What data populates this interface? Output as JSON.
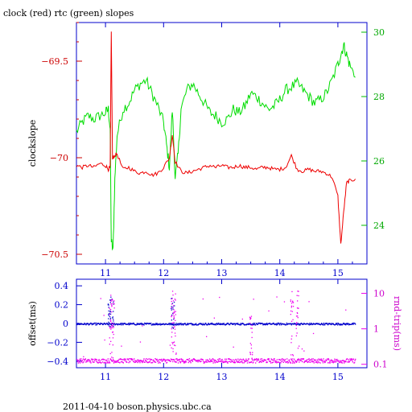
{
  "title": "clock (red) rtc (green) slopes",
  "footer": "2011-04-10 boson.physics.ubc.ca",
  "colors": {
    "clock": "#ee0000",
    "rtc": "#00dd00",
    "offset": "#0000cc",
    "rndtrip": "#ee00ee",
    "frame": "#0000cc",
    "xtick": "#0000cc",
    "left_axis": "#cc0000",
    "right_axis": "#00bb00"
  },
  "chart_data": [
    {
      "type": "line",
      "ylabel": "clockslope",
      "y2label": "",
      "xlim": [
        10.5,
        15.5
      ],
      "ylim": [
        -70.55,
        -69.3
      ],
      "y2lim": [
        22.8,
        30.3
      ],
      "xticks": [
        "11",
        "12",
        "13",
        "14",
        "15"
      ],
      "yticks": [
        "-69.5",
        "-70",
        "-70.5"
      ],
      "y2ticks": [
        "30",
        "28",
        "26",
        "24"
      ],
      "series": [
        {
          "name": "clock",
          "axis": "left",
          "x": [
            10.5,
            10.6,
            10.7,
            10.8,
            10.9,
            11.0,
            11.05,
            11.08,
            11.1,
            11.12,
            11.15,
            11.2,
            11.3,
            11.4,
            11.5,
            11.6,
            11.7,
            11.8,
            11.9,
            12.0,
            12.1,
            12.15,
            12.2,
            12.3,
            12.4,
            12.5,
            12.6,
            12.7,
            12.8,
            12.9,
            13.0,
            13.1,
            13.2,
            13.3,
            13.4,
            13.5,
            13.6,
            13.7,
            13.8,
            13.9,
            14.0,
            14.1,
            14.2,
            14.3,
            14.4,
            14.5,
            14.6,
            14.7,
            14.8,
            14.9,
            15.0,
            15.05,
            15.1,
            15.15,
            15.2,
            15.3
          ],
          "values": [
            -70.04,
            -70.05,
            -70.04,
            -70.05,
            -70.03,
            -70.04,
            -70.06,
            -70.05,
            -69.35,
            -70.01,
            -69.99,
            -69.98,
            -70.06,
            -70.05,
            -70.07,
            -70.08,
            -70.07,
            -70.09,
            -70.08,
            -70.05,
            -70.0,
            -69.88,
            -70.02,
            -70.07,
            -70.08,
            -70.07,
            -70.06,
            -70.05,
            -70.04,
            -70.05,
            -70.04,
            -70.05,
            -70.05,
            -70.04,
            -70.05,
            -70.05,
            -70.06,
            -70.05,
            -70.05,
            -70.06,
            -70.06,
            -70.05,
            -69.99,
            -70.06,
            -70.07,
            -70.06,
            -70.07,
            -70.07,
            -70.08,
            -70.1,
            -70.2,
            -70.45,
            -70.28,
            -70.13,
            -70.12,
            -70.11
          ]
        },
        {
          "name": "rtc",
          "axis": "right",
          "x": [
            10.5,
            10.6,
            10.7,
            10.8,
            10.9,
            11.0,
            11.05,
            11.08,
            11.1,
            11.13,
            11.16,
            11.2,
            11.3,
            11.4,
            11.5,
            11.6,
            11.7,
            11.8,
            11.9,
            12.0,
            12.05,
            12.1,
            12.15,
            12.2,
            12.25,
            12.3,
            12.4,
            12.5,
            12.6,
            12.7,
            12.8,
            12.9,
            13.0,
            13.1,
            13.2,
            13.3,
            13.4,
            13.5,
            13.6,
            13.7,
            13.8,
            13.9,
            14.0,
            14.1,
            14.2,
            14.3,
            14.4,
            14.5,
            14.6,
            14.7,
            14.8,
            14.9,
            15.0,
            15.05,
            15.1,
            15.15,
            15.2,
            15.3
          ],
          "values": [
            26.9,
            27.2,
            27.4,
            27.3,
            27.4,
            27.5,
            27.6,
            27.0,
            23.5,
            23.2,
            25.4,
            26.8,
            27.6,
            27.8,
            28.2,
            28.4,
            28.5,
            28.1,
            27.7,
            27.2,
            26.5,
            25.8,
            27.6,
            25.5,
            26.2,
            27.6,
            28.2,
            28.4,
            28.1,
            27.8,
            27.5,
            27.4,
            27.2,
            27.3,
            27.6,
            27.5,
            27.7,
            28.1,
            28.0,
            27.8,
            27.6,
            27.7,
            27.9,
            28.2,
            28.3,
            28.4,
            28.2,
            28.0,
            27.8,
            27.9,
            28.1,
            28.5,
            29.0,
            29.3,
            29.6,
            29.3,
            29.0,
            28.6
          ]
        }
      ]
    },
    {
      "type": "scatter",
      "ylabel": "offset(ms)",
      "y2label": "rnd-trip(ms)",
      "xlim": [
        10.5,
        15.5
      ],
      "ylim": [
        -0.47,
        0.47
      ],
      "y2scale": "log",
      "y2lim": [
        0.08,
        25
      ],
      "xticks": [
        "11",
        "12",
        "13",
        "14",
        "15"
      ],
      "yticks": [
        "0.4",
        "0.2",
        "0",
        "-0.2",
        "-0.4"
      ],
      "y2ticks": [
        "10",
        "1",
        "0.1"
      ],
      "series": [
        {
          "name": "offset",
          "axis": "left",
          "baseline": 0.0,
          "spread": 0.01,
          "burst_x": [
            11.05,
            11.1,
            12.15
          ],
          "burst_range": [
            -0.05,
            0.3
          ]
        },
        {
          "name": "rnd-trip",
          "axis": "right",
          "baseline": 0.13,
          "spread_factor": 1.15,
          "spikes_x": [
            11.08,
            11.12,
            12.15,
            12.18,
            13.5,
            14.2,
            14.3
          ],
          "spike_max": 12
        }
      ]
    }
  ]
}
